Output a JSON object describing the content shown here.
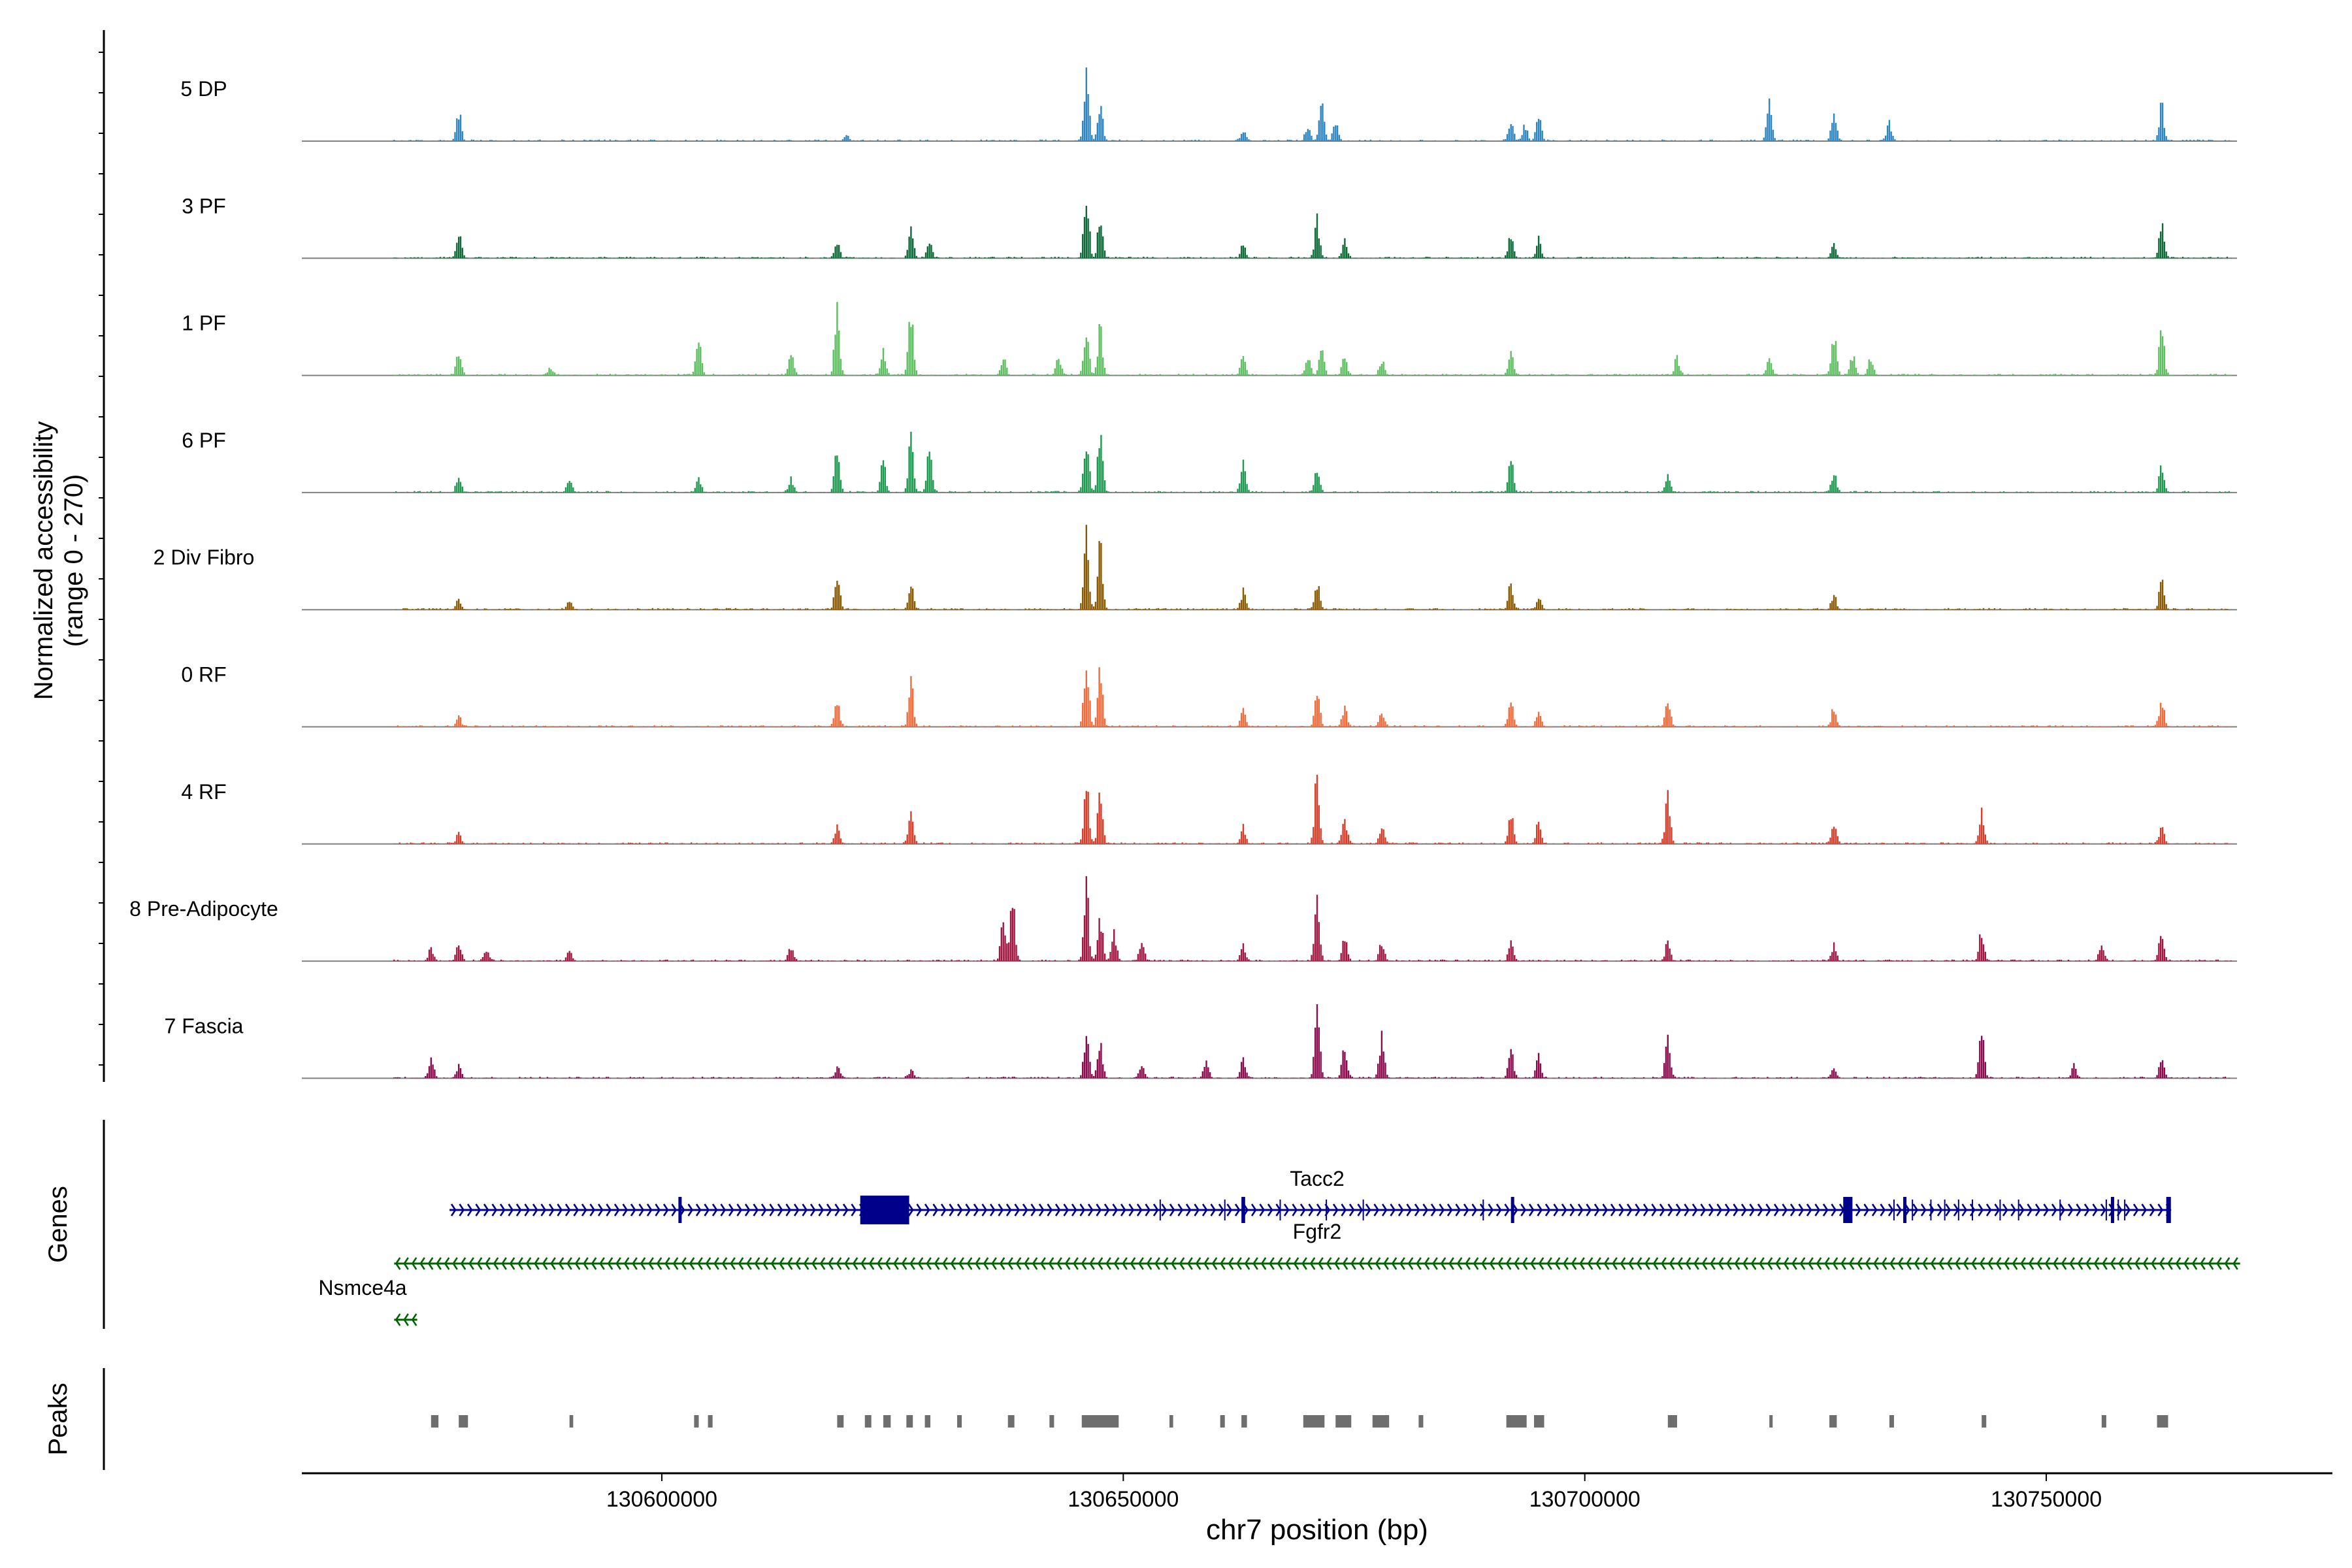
{
  "chart_data": {
    "type": "area",
    "title": "",
    "ylabel_line1": "Normalized accessibility",
    "ylabel_line2": "(range 0 - 270)",
    "ylim": [
      0,
      270
    ],
    "xlabel": "chr7 position (bp)",
    "xlim": [
      130561000,
      130781000
    ],
    "xticks": [
      {
        "value": 130600000,
        "label": "130600000"
      },
      {
        "value": 130650000,
        "label": "130650000"
      },
      {
        "value": 130700000,
        "label": "130700000"
      },
      {
        "value": 130750000,
        "label": "130750000"
      }
    ],
    "signal_range": [
      130571000,
      130770000
    ],
    "tracks": [
      {
        "name": "5 DP",
        "color": "#2E86C1",
        "peaks": [
          [
            130578000,
            120
          ],
          [
            130620000,
            25
          ],
          [
            130646000,
            270
          ],
          [
            130647500,
            160
          ],
          [
            130663000,
            40
          ],
          [
            130670000,
            60
          ],
          [
            130671500,
            140
          ],
          [
            130673000,
            80
          ],
          [
            130692000,
            80
          ],
          [
            130693500,
            60
          ],
          [
            130695000,
            100
          ],
          [
            130720000,
            150
          ],
          [
            130727000,
            120
          ],
          [
            130733000,
            70
          ],
          [
            130762500,
            135
          ]
        ]
      },
      {
        "name": "3 PF",
        "color": "#0E6B38",
        "peaks": [
          [
            130578000,
            110
          ],
          [
            130619000,
            70
          ],
          [
            130627000,
            110
          ],
          [
            130629000,
            60
          ],
          [
            130646000,
            270
          ],
          [
            130647500,
            170
          ],
          [
            130663000,
            50
          ],
          [
            130671000,
            140
          ],
          [
            130674000,
            60
          ],
          [
            130692000,
            90
          ],
          [
            130695000,
            70
          ],
          [
            130727000,
            50
          ],
          [
            130762500,
            130
          ]
        ]
      },
      {
        "name": "1 PF",
        "color": "#5DBF5F",
        "peaks": [
          [
            130578000,
            90
          ],
          [
            130588000,
            30
          ],
          [
            130604000,
            150
          ],
          [
            130614000,
            80
          ],
          [
            130619000,
            270
          ],
          [
            130624000,
            100
          ],
          [
            130627000,
            270
          ],
          [
            130637000,
            70
          ],
          [
            130643000,
            70
          ],
          [
            130646000,
            190
          ],
          [
            130647500,
            200
          ],
          [
            130663000,
            70
          ],
          [
            130670000,
            80
          ],
          [
            130671500,
            100
          ],
          [
            130674000,
            70
          ],
          [
            130678000,
            60
          ],
          [
            130692000,
            100
          ],
          [
            130710000,
            70
          ],
          [
            130720000,
            60
          ],
          [
            130727000,
            170
          ],
          [
            130729000,
            80
          ],
          [
            130731000,
            70
          ],
          [
            130762500,
            175
          ]
        ]
      },
      {
        "name": "6 PF",
        "color": "#1E9950",
        "peaks": [
          [
            130578000,
            60
          ],
          [
            130590000,
            55
          ],
          [
            130604000,
            50
          ],
          [
            130614000,
            50
          ],
          [
            130619000,
            190
          ],
          [
            130624000,
            120
          ],
          [
            130627000,
            200
          ],
          [
            130629000,
            170
          ],
          [
            130646000,
            230
          ],
          [
            130647500,
            230
          ],
          [
            130663000,
            110
          ],
          [
            130671000,
            110
          ],
          [
            130692000,
            120
          ],
          [
            130709000,
            60
          ],
          [
            130727000,
            70
          ],
          [
            130762500,
            110
          ]
        ]
      },
      {
        "name": "2 Div Fibro",
        "color": "#8B5A00",
        "peaks": [
          [
            130578000,
            40
          ],
          [
            130590000,
            30
          ],
          [
            130619000,
            150
          ],
          [
            130627000,
            110
          ],
          [
            130646000,
            270
          ],
          [
            130647500,
            250
          ],
          [
            130663000,
            70
          ],
          [
            130671000,
            110
          ],
          [
            130692000,
            100
          ],
          [
            130695000,
            40
          ],
          [
            130727000,
            60
          ],
          [
            130762500,
            110
          ]
        ]
      },
      {
        "name": "0 RF",
        "color": "#F26B3A",
        "peaks": [
          [
            130578000,
            40
          ],
          [
            130619000,
            110
          ],
          [
            130627000,
            160
          ],
          [
            130646000,
            270
          ],
          [
            130647500,
            220
          ],
          [
            130663000,
            70
          ],
          [
            130671000,
            150
          ],
          [
            130674000,
            80
          ],
          [
            130678000,
            60
          ],
          [
            130692000,
            100
          ],
          [
            130695000,
            60
          ],
          [
            130709000,
            120
          ],
          [
            130727000,
            80
          ],
          [
            130762500,
            100
          ]
        ]
      },
      {
        "name": "4 RF",
        "color": "#D63E2A",
        "peaks": [
          [
            130578000,
            40
          ],
          [
            130619000,
            70
          ],
          [
            130627000,
            110
          ],
          [
            130646000,
            240
          ],
          [
            130647500,
            200
          ],
          [
            130663000,
            70
          ],
          [
            130671000,
            260
          ],
          [
            130674000,
            100
          ],
          [
            130678000,
            60
          ],
          [
            130692000,
            110
          ],
          [
            130695000,
            80
          ],
          [
            130709000,
            200
          ],
          [
            130727000,
            80
          ],
          [
            130743000,
            120
          ],
          [
            130762500,
            70
          ]
        ]
      },
      {
        "name": "8 Pre-Adipocyte",
        "color": "#A01841",
        "peaks": [
          [
            130575000,
            50
          ],
          [
            130578000,
            70
          ],
          [
            130581000,
            40
          ],
          [
            130590000,
            40
          ],
          [
            130614000,
            60
          ],
          [
            130637000,
            150
          ],
          [
            130638000,
            250
          ],
          [
            130646000,
            270
          ],
          [
            130647500,
            180
          ],
          [
            130649000,
            110
          ],
          [
            130652000,
            80
          ],
          [
            130663000,
            60
          ],
          [
            130671000,
            240
          ],
          [
            130674000,
            90
          ],
          [
            130678000,
            80
          ],
          [
            130692000,
            70
          ],
          [
            130709000,
            70
          ],
          [
            130727000,
            60
          ],
          [
            130743000,
            120
          ],
          [
            130756000,
            60
          ],
          [
            130762500,
            120
          ]
        ]
      },
      {
        "name": "7 Fascia",
        "color": "#8B0A4E",
        "peaks": [
          [
            130575000,
            90
          ],
          [
            130578000,
            50
          ],
          [
            130619000,
            40
          ],
          [
            130627000,
            30
          ],
          [
            130646000,
            180
          ],
          [
            130647500,
            150
          ],
          [
            130652000,
            50
          ],
          [
            130659000,
            80
          ],
          [
            130663000,
            70
          ],
          [
            130671000,
            270
          ],
          [
            130674000,
            130
          ],
          [
            130678000,
            160
          ],
          [
            130692000,
            120
          ],
          [
            130695000,
            80
          ],
          [
            130709000,
            170
          ],
          [
            130727000,
            40
          ],
          [
            130743000,
            170
          ],
          [
            130753000,
            50
          ],
          [
            130762500,
            80
          ]
        ]
      }
    ],
    "genes_label": "Genes",
    "genes": [
      {
        "name": "Tacc2",
        "strand": "+",
        "color": "#00008B",
        "start": 130577000,
        "end": 130763500,
        "exons": [
          [
            130601800,
            130602100
          ],
          [
            130621500,
            130626800
          ],
          [
            130662800,
            130663200
          ],
          [
            130692000,
            130692300
          ],
          [
            130728000,
            130729000
          ],
          [
            130734500,
            130734700
          ],
          [
            130757000,
            130757200
          ],
          [
            130763000,
            130763500
          ]
        ]
      },
      {
        "name": "Fgfr2",
        "strand": "-",
        "color": "#006400",
        "start": 130571000,
        "end": 130771000,
        "exons": []
      },
      {
        "name": "Nsmce4a",
        "strand": "-",
        "color": "#006400",
        "start": 130571000,
        "end": 130573500,
        "exons": []
      }
    ],
    "peaks_label": "Peaks",
    "peak_color": "#6E6E6E",
    "peak_regions": [
      [
        130575000,
        130575800
      ],
      [
        130578000,
        130579000
      ],
      [
        130590000,
        130590400
      ],
      [
        130603500,
        130604000
      ],
      [
        130605000,
        130605500
      ],
      [
        130619000,
        130619700
      ],
      [
        130622000,
        130622700
      ],
      [
        130624000,
        130624800
      ],
      [
        130626500,
        130627200
      ],
      [
        130628500,
        130629100
      ],
      [
        130632000,
        130632500
      ],
      [
        130637500,
        130638200
      ],
      [
        130642000,
        130642500
      ],
      [
        130645500,
        130649500
      ],
      [
        130655000,
        130655400
      ],
      [
        130660500,
        130661000
      ],
      [
        130662800,
        130663400
      ],
      [
        130669500,
        130671800
      ],
      [
        130673000,
        130674700
      ],
      [
        130677000,
        130678800
      ],
      [
        130682000,
        130682500
      ],
      [
        130691500,
        130693700
      ],
      [
        130694500,
        130695600
      ],
      [
        130709000,
        130710000
      ],
      [
        130720000,
        130720300
      ],
      [
        130726500,
        130727300
      ],
      [
        130733000,
        130733500
      ],
      [
        130743000,
        130743500
      ],
      [
        130756000,
        130756500
      ],
      [
        130762000,
        130763200
      ]
    ]
  }
}
